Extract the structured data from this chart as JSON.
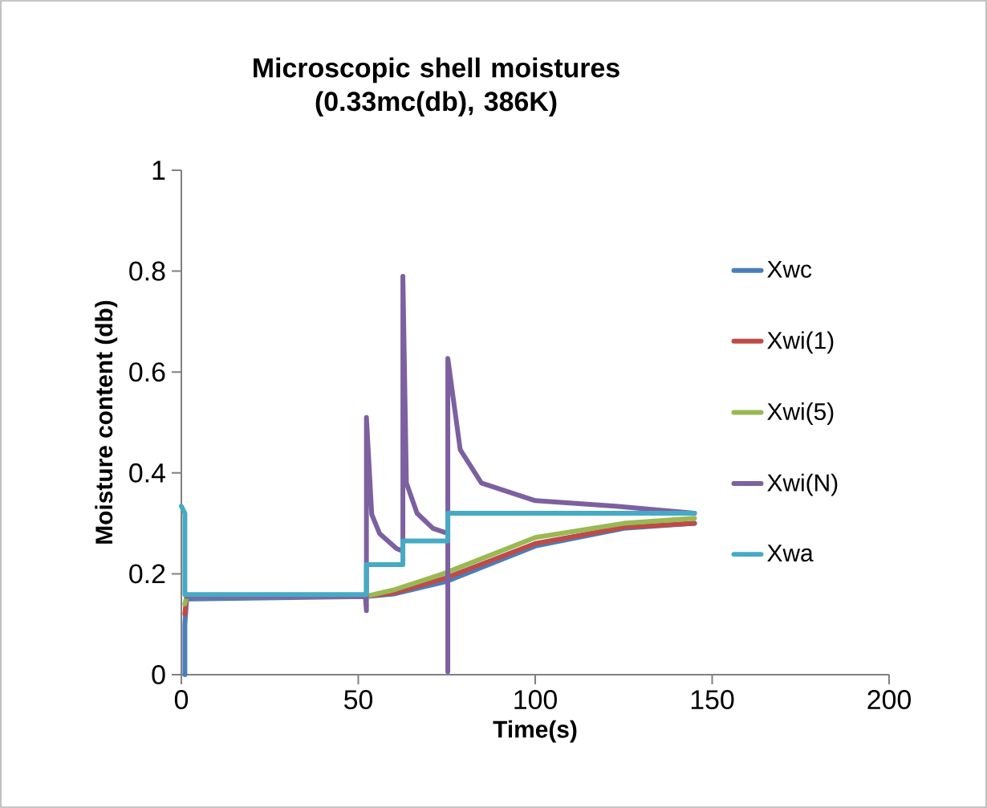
{
  "chart_data": {
    "type": "line",
    "title": "Microscopic shell moistures (0.33mc(db), 386K)",
    "xlabel": "Time(s)",
    "ylabel": "Moisture content (db)",
    "xlim": [
      0,
      200
    ],
    "ylim": [
      0,
      1
    ],
    "xticks": [
      0,
      50,
      100,
      150,
      200
    ],
    "yticks": [
      0,
      0.2,
      0.4,
      0.6,
      0.8,
      1
    ],
    "grid": false,
    "legend": "right",
    "marker": "none",
    "line_style": "solid",
    "series": [
      {
        "name": "Xwc",
        "color": "#4a7ebb",
        "x": [
          1,
          1,
          1.5,
          52,
          60,
          75,
          100,
          125,
          145
        ],
        "values": [
          0.0,
          0.1,
          0.15,
          0.155,
          0.16,
          0.185,
          0.255,
          0.29,
          0.3
        ]
      },
      {
        "name": "Xwi(1)",
        "color": "#be4b48",
        "x": [
          1,
          1.5,
          52,
          60,
          74,
          100,
          125,
          145
        ],
        "values": [
          0.12,
          0.155,
          0.155,
          0.162,
          0.19,
          0.26,
          0.292,
          0.3
        ]
      },
      {
        "name": "Xwi(5)",
        "color": "#98b954",
        "x": [
          1,
          1.5,
          52,
          60,
          74,
          100,
          125,
          145
        ],
        "values": [
          0.14,
          0.155,
          0.155,
          0.168,
          0.2,
          0.272,
          0.3,
          0.31
        ]
      },
      {
        "name": "Xwi(N)",
        "color": "#7d60a0",
        "x": [
          1.5,
          52,
          52.3,
          52.3,
          53.8,
          56,
          60.8,
          62.6,
          62.6,
          63.6,
          66.6,
          71.1,
          75.3,
          75.3,
          75.3,
          78.8,
          84.8,
          100,
          122.8,
          145
        ],
        "values": [
          0.155,
          0.155,
          0.127,
          0.51,
          0.318,
          0.28,
          0.25,
          0.245,
          0.79,
          0.38,
          0.32,
          0.29,
          0.28,
          0.006,
          0.627,
          0.446,
          0.38,
          0.345,
          0.334,
          0.32
        ]
      },
      {
        "name": "Xwa",
        "color": "#46aac5",
        "x": [
          0,
          1,
          1,
          52.3,
          52.3,
          62.6,
          62.6,
          75.3,
          75.3,
          145
        ],
        "values": [
          0.334,
          0.32,
          0.159,
          0.159,
          0.218,
          0.218,
          0.265,
          0.265,
          0.32,
          0.32
        ]
      }
    ]
  }
}
